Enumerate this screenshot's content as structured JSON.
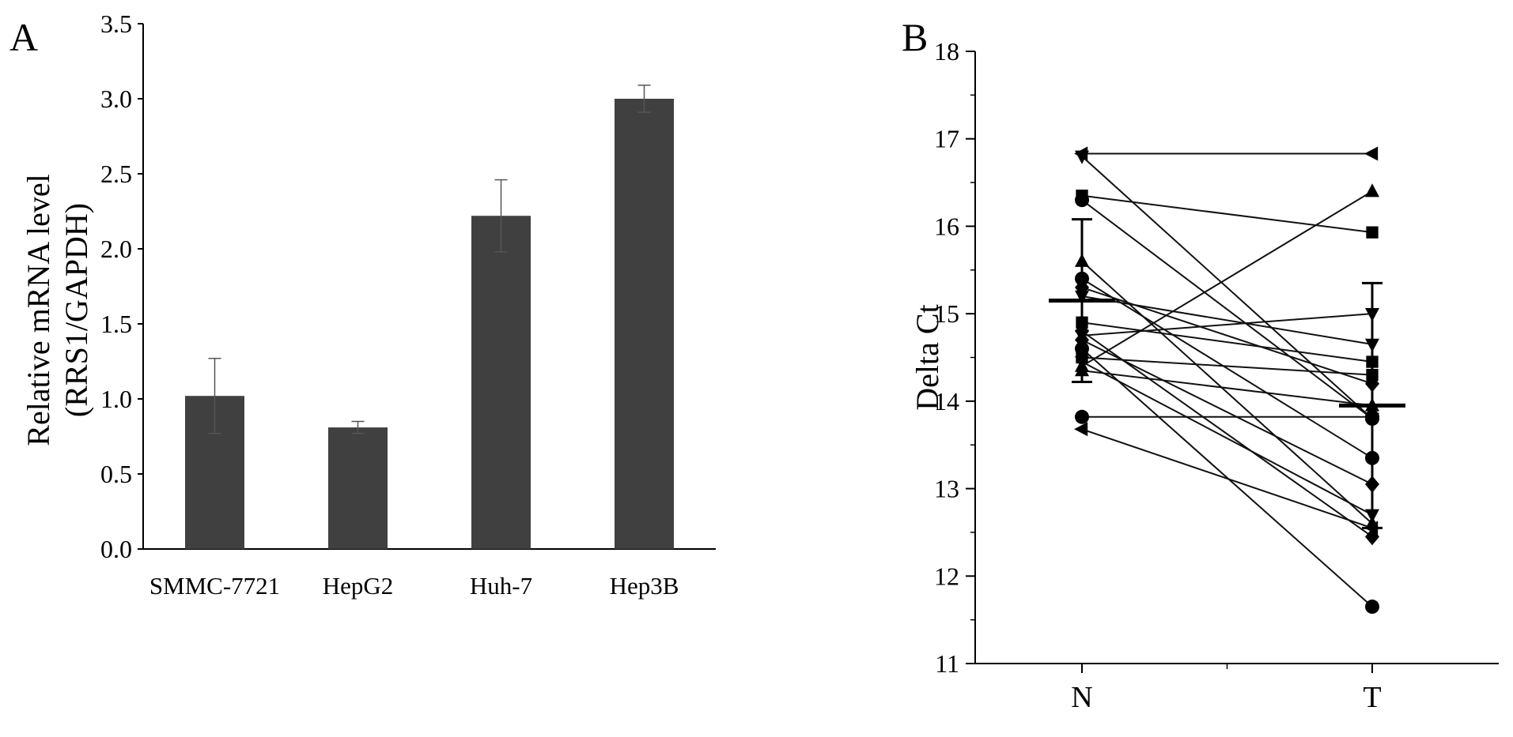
{
  "panels": {
    "a_label": "A",
    "b_label": "B"
  },
  "chart_data": [
    {
      "type": "bar",
      "panel": "A",
      "categories": [
        "SMMC-7721",
        "HepG2",
        "Huh-7",
        "Hep3B"
      ],
      "values": [
        1.02,
        0.81,
        2.22,
        3.0
      ],
      "errors": [
        0.25,
        0.04,
        0.24,
        0.09
      ],
      "ylabel": [
        "Relative mRNA level",
        "(RRS1/GAPDH)"
      ],
      "ylim": [
        0,
        3.5
      ],
      "yticks": [
        "0.0",
        "0.5",
        "1.0",
        "1.5",
        "2.0",
        "2.5",
        "3.0",
        "3.5"
      ],
      "bar_color": "#404040",
      "grid": false
    },
    {
      "type": "line",
      "panel": "B",
      "categories": [
        "N",
        "T"
      ],
      "ylabel": "Delta Ct",
      "ylim": [
        11,
        18
      ],
      "yticks": [
        "11",
        "12",
        "13",
        "14",
        "15",
        "16",
        "17",
        "18"
      ],
      "mean": [
        15.15,
        13.95
      ],
      "sd": [
        0.93,
        1.4
      ],
      "pairs": [
        {
          "marker": "triangle-left",
          "values": [
            16.83,
            16.83
          ]
        },
        {
          "marker": "triangle-down",
          "values": [
            16.8,
            13.8
          ]
        },
        {
          "marker": "square",
          "values": [
            16.35,
            15.93
          ]
        },
        {
          "marker": "circle",
          "values": [
            16.3,
            13.8
          ]
        },
        {
          "marker": "triangle-up",
          "values": [
            15.6,
            12.6
          ]
        },
        {
          "marker": "circle",
          "values": [
            15.4,
            13.35
          ]
        },
        {
          "marker": "diamond",
          "values": [
            15.3,
            14.2
          ]
        },
        {
          "marker": "triangle-down",
          "values": [
            15.2,
            14.65
          ]
        },
        {
          "marker": "square",
          "values": [
            14.9,
            14.45
          ]
        },
        {
          "marker": "diamond",
          "values": [
            14.8,
            12.45
          ]
        },
        {
          "marker": "triangle-down",
          "values": [
            14.75,
            15.0
          ]
        },
        {
          "marker": "diamond",
          "values": [
            14.7,
            13.05
          ]
        },
        {
          "marker": "circle",
          "values": [
            14.6,
            11.65
          ]
        },
        {
          "marker": "square",
          "values": [
            14.5,
            14.3
          ]
        },
        {
          "marker": "triangle-down",
          "values": [
            14.45,
            12.7
          ]
        },
        {
          "marker": "triangle-up",
          "values": [
            14.4,
            16.4
          ]
        },
        {
          "marker": "triangle-up",
          "values": [
            14.35,
            13.95
          ]
        },
        {
          "marker": "circle",
          "values": [
            13.82,
            13.82
          ]
        },
        {
          "marker": "triangle-left",
          "values": [
            13.68,
            12.55
          ]
        }
      ],
      "grid": false
    }
  ]
}
